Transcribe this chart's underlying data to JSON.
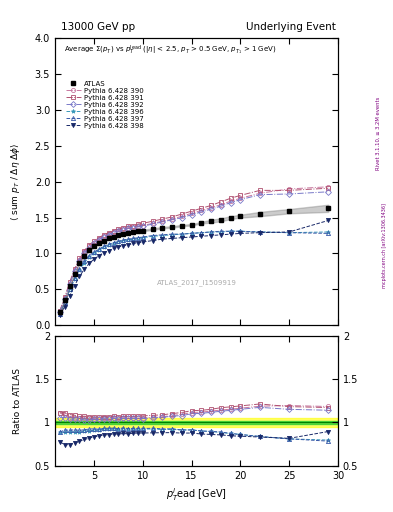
{
  "title_left": "13000 GeV pp",
  "title_right": "Underlying Event",
  "right_label": "mcplots.cern.ch [arXiv:1306.3436]",
  "rivet_label": "Rivet 3.1.10, ≥ 3.2M events",
  "watermark": "ATLAS_2017_I1509919",
  "ratio_ylabel": "Ratio to ATLAS",
  "ylim_main": [
    0,
    4.0
  ],
  "ylim_ratio": [
    0.5,
    2.0
  ],
  "xlim": [
    1,
    30
  ],
  "x_data": [
    1.5,
    2.0,
    2.5,
    3.0,
    3.5,
    4.0,
    4.5,
    5.0,
    5.5,
    6.0,
    6.5,
    7.0,
    7.5,
    8.0,
    8.5,
    9.0,
    9.5,
    10.0,
    11.0,
    12.0,
    13.0,
    14.0,
    15.0,
    16.0,
    17.0,
    18.0,
    19.0,
    20.0,
    22.0,
    25.0,
    29.0
  ],
  "atlas_y": [
    0.18,
    0.35,
    0.55,
    0.72,
    0.87,
    0.97,
    1.05,
    1.1,
    1.15,
    1.18,
    1.21,
    1.23,
    1.26,
    1.27,
    1.29,
    1.3,
    1.31,
    1.32,
    1.34,
    1.36,
    1.37,
    1.39,
    1.4,
    1.43,
    1.45,
    1.47,
    1.5,
    1.52,
    1.55,
    1.59,
    1.63
  ],
  "atlas_err": [
    0.01,
    0.01,
    0.01,
    0.01,
    0.01,
    0.01,
    0.01,
    0.01,
    0.01,
    0.01,
    0.01,
    0.01,
    0.01,
    0.01,
    0.01,
    0.01,
    0.01,
    0.01,
    0.01,
    0.01,
    0.01,
    0.01,
    0.01,
    0.01,
    0.02,
    0.02,
    0.02,
    0.02,
    0.03,
    0.03,
    0.05
  ],
  "series": [
    {
      "label": "Pythia 6.428 390",
      "color": "#c878a0",
      "linestyle": "-.",
      "marker": "o",
      "markerfacecolor": "none",
      "y": [
        0.2,
        0.38,
        0.58,
        0.76,
        0.91,
        1.02,
        1.1,
        1.15,
        1.2,
        1.24,
        1.27,
        1.3,
        1.32,
        1.34,
        1.36,
        1.37,
        1.38,
        1.39,
        1.42,
        1.45,
        1.48,
        1.52,
        1.56,
        1.6,
        1.64,
        1.68,
        1.73,
        1.77,
        1.84,
        1.9,
        1.93
      ]
    },
    {
      "label": "Pythia 6.428 391",
      "color": "#b05070",
      "linestyle": "-.",
      "marker": "s",
      "markerfacecolor": "none",
      "y": [
        0.2,
        0.39,
        0.6,
        0.78,
        0.93,
        1.04,
        1.12,
        1.17,
        1.22,
        1.26,
        1.29,
        1.32,
        1.34,
        1.36,
        1.38,
        1.39,
        1.41,
        1.42,
        1.45,
        1.48,
        1.51,
        1.55,
        1.59,
        1.63,
        1.67,
        1.72,
        1.77,
        1.81,
        1.88,
        1.88,
        1.91
      ]
    },
    {
      "label": "Pythia 6.428 392",
      "color": "#7878c8",
      "linestyle": "-.",
      "marker": "D",
      "markerfacecolor": "none",
      "y": [
        0.19,
        0.37,
        0.57,
        0.75,
        0.9,
        1.0,
        1.08,
        1.14,
        1.19,
        1.23,
        1.26,
        1.29,
        1.31,
        1.33,
        1.35,
        1.36,
        1.37,
        1.38,
        1.41,
        1.44,
        1.47,
        1.5,
        1.54,
        1.58,
        1.62,
        1.66,
        1.71,
        1.75,
        1.82,
        1.83,
        1.86
      ]
    },
    {
      "label": "Pythia 6.428 396",
      "color": "#3898b8",
      "linestyle": "--",
      "marker": "*",
      "markerfacecolor": "none",
      "y": [
        0.16,
        0.31,
        0.49,
        0.64,
        0.77,
        0.87,
        0.95,
        1.0,
        1.05,
        1.09,
        1.12,
        1.14,
        1.16,
        1.18,
        1.19,
        1.2,
        1.21,
        1.22,
        1.24,
        1.25,
        1.26,
        1.27,
        1.28,
        1.29,
        1.3,
        1.3,
        1.31,
        1.31,
        1.3,
        1.29,
        1.3
      ]
    },
    {
      "label": "Pythia 6.428 397",
      "color": "#3858a8",
      "linestyle": "--",
      "marker": "^",
      "markerfacecolor": "none",
      "y": [
        0.16,
        0.32,
        0.5,
        0.66,
        0.79,
        0.89,
        0.97,
        1.02,
        1.06,
        1.1,
        1.13,
        1.15,
        1.17,
        1.19,
        1.2,
        1.21,
        1.22,
        1.23,
        1.25,
        1.26,
        1.27,
        1.27,
        1.28,
        1.29,
        1.3,
        1.31,
        1.31,
        1.31,
        1.3,
        1.29,
        1.28
      ]
    },
    {
      "label": "Pythia 6.428 398",
      "color": "#182868",
      "linestyle": "--",
      "marker": "v",
      "markerfacecolor": "#182868",
      "y": [
        0.14,
        0.26,
        0.41,
        0.55,
        0.68,
        0.78,
        0.86,
        0.92,
        0.97,
        1.01,
        1.04,
        1.07,
        1.09,
        1.11,
        1.12,
        1.14,
        1.15,
        1.16,
        1.18,
        1.2,
        1.21,
        1.22,
        1.23,
        1.24,
        1.25,
        1.26,
        1.27,
        1.28,
        1.29,
        1.3,
        1.46
      ]
    }
  ]
}
